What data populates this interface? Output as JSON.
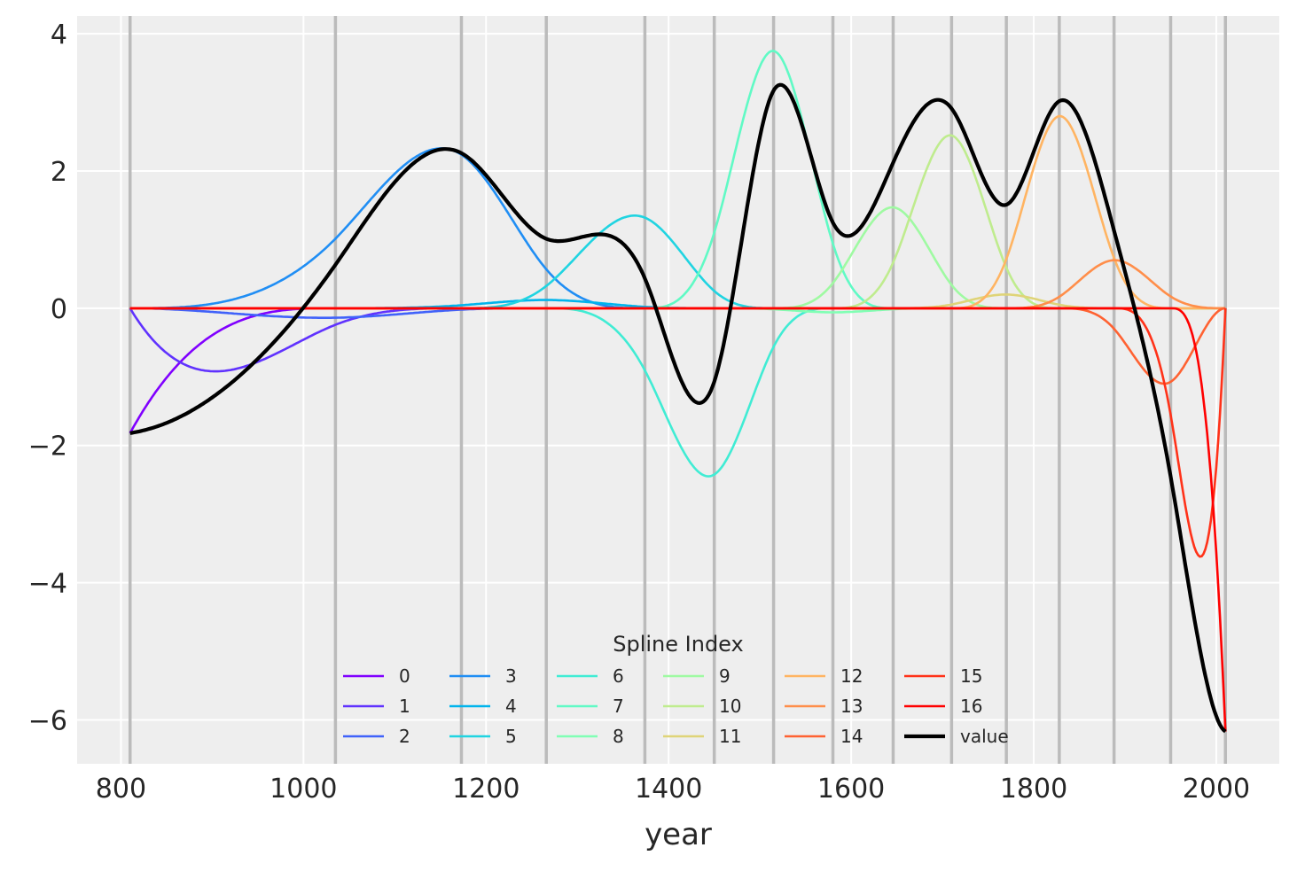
{
  "chart_data": {
    "type": "line",
    "title": "",
    "xlabel": "year",
    "ylabel": "",
    "xlim": [
      752,
      2069
    ],
    "ylim": [
      -6.64,
      4.26
    ],
    "xticks": [
      800,
      1000,
      1200,
      1400,
      1600,
      1800,
      2000
    ],
    "xtick_labels": [
      "800",
      "1000",
      "1200",
      "1400",
      "1600",
      "1800",
      "2000"
    ],
    "yticks": [
      4,
      2,
      0,
      -2,
      -4,
      -6
    ],
    "ytick_labels": [
      "4",
      "2",
      "0",
      "−2",
      "−4",
      "−6"
    ],
    "grid": true,
    "background": "#eeeeee",
    "knot_line_color": "#bbbbbb",
    "knots": [
      810,
      1035,
      1173,
      1266,
      1374,
      1450,
      1515,
      1580,
      1646,
      1710,
      1770,
      1828,
      1888,
      1950,
      2010
    ],
    "colormap": "rainbow",
    "legend": {
      "title": "Spline Index",
      "placement": "lower center",
      "columns": 6
    },
    "series": [
      {
        "name": "0",
        "peak": -1.82
      },
      {
        "name": "1",
        "peak": -0.92
      },
      {
        "name": "2",
        "peak": -0.14
      },
      {
        "name": "3",
        "peak": 2.33
      },
      {
        "name": "4",
        "peak": 0.12
      },
      {
        "name": "5",
        "peak": 1.35
      },
      {
        "name": "6",
        "peak": -2.45
      },
      {
        "name": "7",
        "peak": 3.75
      },
      {
        "name": "8",
        "peak": -0.06
      },
      {
        "name": "9",
        "peak": 1.47
      },
      {
        "name": "10",
        "peak": 2.52
      },
      {
        "name": "11",
        "peak": 0.2
      },
      {
        "name": "12",
        "peak": 2.8
      },
      {
        "name": "13",
        "peak": 0.7
      },
      {
        "name": "14",
        "peak": -1.1
      },
      {
        "name": "15",
        "peak": -3.62
      },
      {
        "name": "16",
        "peak": -6.17
      }
    ],
    "sum_series": {
      "name": "value",
      "color": "#000000"
    }
  }
}
